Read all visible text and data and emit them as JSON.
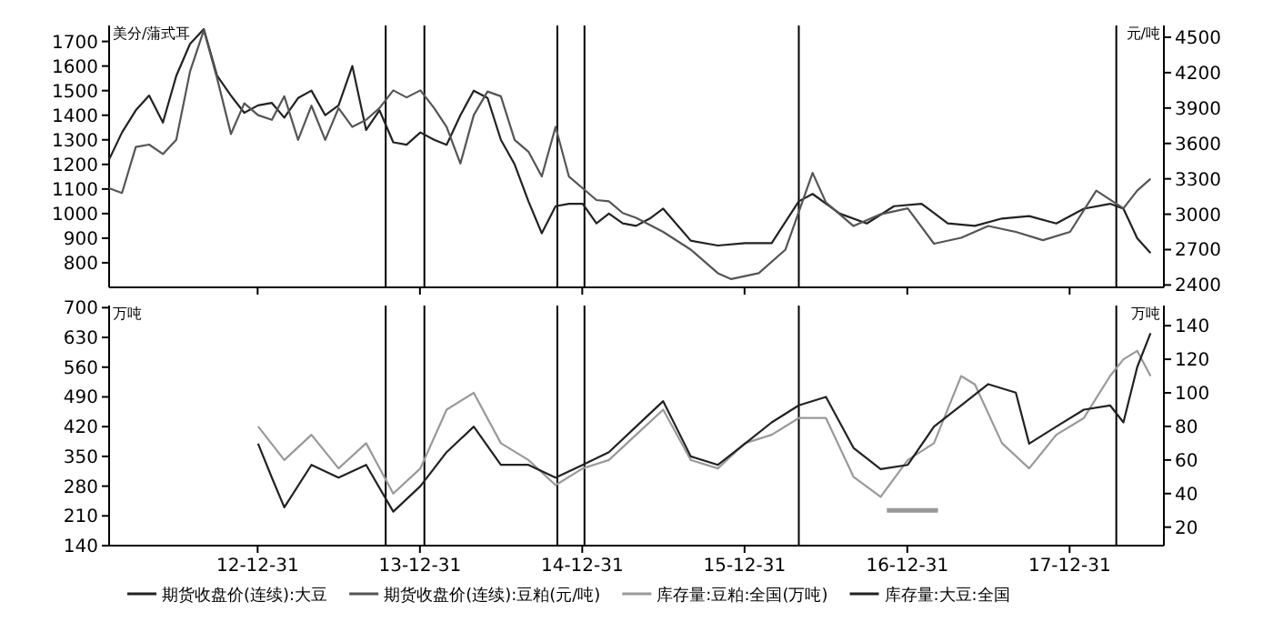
{
  "chart_data": [
    {
      "type": "line",
      "ylabel": "美分/蒲式耳",
      "y2label": "元/吨",
      "ylim": [
        700,
        1765
      ],
      "yticks": [
        800,
        900,
        1000,
        1100,
        1200,
        1300,
        1400,
        1500,
        1600,
        1700
      ],
      "y2lim": [
        2380,
        4600
      ],
      "y2ticks": [
        2400,
        2700,
        3000,
        3300,
        3600,
        3900,
        4200,
        4500
      ],
      "xlim": [
        "2012-02-01",
        "2018-07-31"
      ],
      "xticks": [
        {
          "value": "2012-12-31",
          "label": null
        },
        {
          "value": "2013-12-31",
          "label": null
        },
        {
          "value": "2014-12-31",
          "label": null
        },
        {
          "value": "2015-12-31",
          "label": null
        },
        {
          "value": "2016-12-31",
          "label": null
        },
        {
          "value": "2017-12-31",
          "label": null
        }
      ],
      "tick_labels": "y",
      "legend": "bottom",
      "grid": false,
      "line_style": "solid",
      "ref_lines": [
        {
          "axis": "x",
          "value": "2013-10-15",
          "color": "#000000"
        },
        {
          "axis": "x",
          "value": "2014-01-10",
          "color": "#000000"
        },
        {
          "axis": "x",
          "value": "2014-11-05",
          "color": "#000000"
        },
        {
          "axis": "x",
          "value": "2015-01-05",
          "color": "#000000"
        },
        {
          "axis": "x",
          "value": "2016-05-01",
          "color": "#000000"
        },
        {
          "axis": "x",
          "value": "2018-04-15",
          "color": "#000000"
        }
      ],
      "series": [
        {
          "name": "期货收盘价(连续):大豆",
          "color": "#222222",
          "x": [
            "2012-02",
            "2012-03",
            "2012-04",
            "2012-05",
            "2012-06",
            "2012-07",
            "2012-08",
            "2012-09",
            "2012-10",
            "2012-11",
            "2012-12",
            "2013-01",
            "2013-02",
            "2013-03",
            "2013-04",
            "2013-05",
            "2013-06",
            "2013-07",
            "2013-08",
            "2013-09",
            "2013-10",
            "2013-11",
            "2013-12",
            "2014-01",
            "2014-02",
            "2014-03",
            "2014-04",
            "2014-05",
            "2014-06",
            "2014-07",
            "2014-08",
            "2014-09",
            "2014-10",
            "2014-11",
            "2014-12",
            "2015-01",
            "2015-02",
            "2015-03",
            "2015-04",
            "2015-05",
            "2015-06",
            "2015-07",
            "2015-09",
            "2015-11",
            "2016-01",
            "2016-03",
            "2016-05",
            "2016-06",
            "2016-08",
            "2016-10",
            "2016-12",
            "2017-02",
            "2017-04",
            "2017-06",
            "2017-08",
            "2017-10",
            "2017-12",
            "2018-02",
            "2018-04",
            "2018-05",
            "2018-06",
            "2018-07"
          ],
          "values": [
            1220,
            1330,
            1420,
            1480,
            1370,
            1560,
            1690,
            1750,
            1560,
            1480,
            1410,
            1440,
            1450,
            1390,
            1470,
            1500,
            1400,
            1440,
            1600,
            1340,
            1420,
            1290,
            1280,
            1330,
            1300,
            1280,
            1400,
            1500,
            1470,
            1300,
            1200,
            1050,
            920,
            1030,
            1040,
            1040,
            960,
            1000,
            960,
            950,
            980,
            1020,
            890,
            870,
            880,
            880,
            1050,
            1080,
            1000,
            960,
            1030,
            1040,
            960,
            950,
            980,
            990,
            960,
            1020,
            1040,
            1020,
            900,
            840
          ]
        },
        {
          "name": "期货收盘价(连续):豆粕(元/吨)",
          "color": "#555555",
          "axis": "y2",
          "x": [
            "2012-02",
            "2012-03",
            "2012-04",
            "2012-05",
            "2012-06",
            "2012-07",
            "2012-08",
            "2012-09",
            "2012-10",
            "2012-11",
            "2012-12",
            "2013-01",
            "2013-02",
            "2013-03",
            "2013-04",
            "2013-05",
            "2013-06",
            "2013-07",
            "2013-08",
            "2013-09",
            "2013-10",
            "2013-11",
            "2013-12",
            "2014-01",
            "2014-02",
            "2014-03",
            "2014-04",
            "2014-05",
            "2014-06",
            "2014-07",
            "2014-08",
            "2014-09",
            "2014-10",
            "2014-11",
            "2014-12",
            "2015-01",
            "2015-02",
            "2015-03",
            "2015-04",
            "2015-05",
            "2015-07",
            "2015-09",
            "2015-11",
            "2015-12",
            "2016-02",
            "2016-04",
            "2016-06",
            "2016-07",
            "2016-09",
            "2016-11",
            "2017-01",
            "2017-03",
            "2017-05",
            "2017-07",
            "2017-09",
            "2017-11",
            "2018-01",
            "2018-03",
            "2018-05",
            "2018-06",
            "2018-07"
          ],
          "values": [
            3220,
            3180,
            3570,
            3590,
            3510,
            3630,
            4210,
            4560,
            4150,
            3680,
            3940,
            3840,
            3800,
            4000,
            3630,
            3920,
            3630,
            3900,
            3740,
            3800,
            3900,
            4050,
            3990,
            4050,
            3900,
            3740,
            3430,
            3840,
            4040,
            4000,
            3630,
            3530,
            3320,
            3740,
            3320,
            3220,
            3120,
            3110,
            3010,
            2970,
            2850,
            2700,
            2500,
            2450,
            2500,
            2700,
            3350,
            3100,
            2900,
            3000,
            3050,
            2750,
            2800,
            2900,
            2850,
            2780,
            2850,
            3200,
            3050,
            3200,
            3300
          ]
        }
      ]
    },
    {
      "type": "line",
      "ylabel": "万吨",
      "y2label": "万吨",
      "ylim": [
        140,
        705
      ],
      "yticks": [
        140,
        210,
        280,
        350,
        420,
        490,
        560,
        630,
        700
      ],
      "y2lim": [
        9,
        152
      ],
      "y2ticks": [
        20,
        40,
        60,
        80,
        100,
        120,
        140
      ],
      "xlim": [
        "2012-02-01",
        "2018-07-31"
      ],
      "xticks": [
        {
          "value": "2012-12-31",
          "label": "12-12-31"
        },
        {
          "value": "2013-12-31",
          "label": "13-12-31"
        },
        {
          "value": "2014-12-31",
          "label": "14-12-31"
        },
        {
          "value": "2015-12-31",
          "label": "15-12-31"
        },
        {
          "value": "2016-12-31",
          "label": "16-12-31"
        },
        {
          "value": "2017-12-31",
          "label": "17-12-31"
        }
      ],
      "legend": "bottom",
      "grid": false,
      "line_style": "solid",
      "ref_lines": [
        {
          "axis": "x",
          "value": "2013-10-15",
          "color": "#000000"
        },
        {
          "axis": "x",
          "value": "2014-01-10",
          "color": "#000000"
        },
        {
          "axis": "x",
          "value": "2014-11-05",
          "color": "#000000"
        },
        {
          "axis": "x",
          "value": "2015-01-05",
          "color": "#000000"
        },
        {
          "axis": "x",
          "value": "2016-05-01",
          "color": "#000000"
        },
        {
          "axis": "x",
          "value": "2018-04-15",
          "color": "#000000"
        }
      ],
      "series": [
        {
          "name": "库存量:豆粕:全国(万吨)",
          "color": "#999999",
          "axis": "y2",
          "x": [
            "2013-01",
            "2013-03",
            "2013-05",
            "2013-07",
            "2013-09",
            "2013-11",
            "2014-01",
            "2014-03",
            "2014-05",
            "2014-07",
            "2014-09",
            "2014-11",
            "2015-01",
            "2015-03",
            "2015-05",
            "2015-07",
            "2015-09",
            "2015-11",
            "2016-01",
            "2016-03",
            "2016-05",
            "2016-07",
            "2016-09",
            "2016-11",
            "2017-01",
            "2017-03",
            "2017-05",
            "2017-06",
            "2017-08",
            "2017-10",
            "2017-12",
            "2018-02",
            "2018-04",
            "2018-05",
            "2018-06",
            "2018-07"
          ],
          "values": [
            80,
            60,
            75,
            55,
            70,
            40,
            55,
            90,
            100,
            70,
            60,
            45,
            55,
            60,
            75,
            90,
            60,
            55,
            70,
            75,
            85,
            85,
            50,
            38,
            60,
            70,
            110,
            105,
            70,
            55,
            75,
            85,
            110,
            120,
            125,
            110
          ]
        },
        {
          "name": "库存量:大豆:全国",
          "color": "#222222",
          "x": [
            "2013-01",
            "2013-02",
            "2013-03",
            "2013-05",
            "2013-07",
            "2013-09",
            "2013-11",
            "2014-01",
            "2014-03",
            "2014-05",
            "2014-07",
            "2014-09",
            "2014-11",
            "2015-01",
            "2015-03",
            "2015-05",
            "2015-07",
            "2015-09",
            "2015-11",
            "2016-01",
            "2016-03",
            "2016-05",
            "2016-07",
            "2016-09",
            "2016-11",
            "2017-01",
            "2017-03",
            "2017-05",
            "2017-07",
            "2017-09",
            "2017-10",
            "2017-12",
            "2018-02",
            "2018-04",
            "2018-05",
            "2018-06",
            "2018-07"
          ],
          "values": [
            380,
            300,
            230,
            330,
            300,
            330,
            220,
            280,
            360,
            420,
            330,
            330,
            300,
            330,
            360,
            420,
            480,
            350,
            330,
            380,
            430,
            470,
            490,
            370,
            320,
            330,
            420,
            470,
            520,
            500,
            380,
            420,
            460,
            470,
            430,
            560,
            640
          ]
        },
        {
          "color": "#999999",
          "axis": "y2",
          "x": [
            "2016-11-15",
            "2017-03-10"
          ],
          "values": [
            30,
            30
          ]
        }
      ]
    }
  ]
}
